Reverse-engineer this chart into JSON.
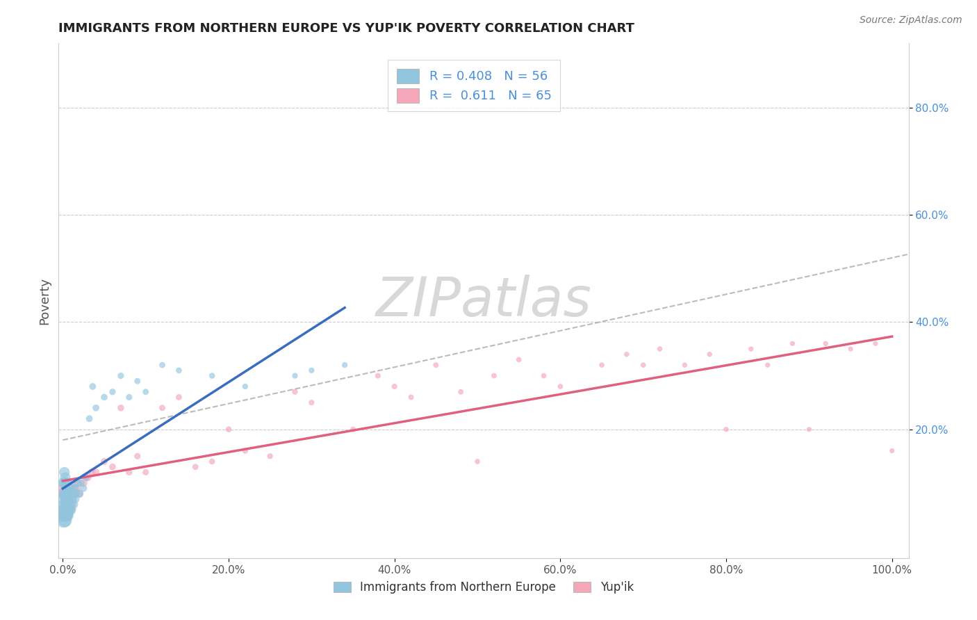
{
  "title": "IMMIGRANTS FROM NORTHERN EUROPE VS YUP'IK POVERTY CORRELATION CHART",
  "source": "Source: ZipAtlas.com",
  "ylabel": "Poverty",
  "xlabel": "",
  "xlim": [
    -0.005,
    1.02
  ],
  "ylim": [
    -0.04,
    0.92
  ],
  "xticks": [
    0,
    0.2,
    0.4,
    0.6,
    0.8,
    1.0
  ],
  "xticklabels": [
    "0.0%",
    "20.0%",
    "40.0%",
    "60.0%",
    "80.0%",
    "100.0%"
  ],
  "yticks": [
    0.2,
    0.4,
    0.6,
    0.8
  ],
  "yticklabels": [
    "20.0%",
    "40.0%",
    "60.0%",
    "80.0%"
  ],
  "blue_color": "#92c5de",
  "pink_color": "#f4a7b9",
  "blue_line_color": "#3a6dbf",
  "pink_line_color": "#e06080",
  "dashed_line_color": "#aaaaaa",
  "watermark_color": "#d8d8d8",
  "legend_r_blue": "R = 0.408",
  "legend_n_blue": "N = 56",
  "legend_r_pink": "R =  0.611",
  "legend_n_pink": "N = 65",
  "blue_series_x": [
    0.001,
    0.001,
    0.001,
    0.001,
    0.002,
    0.002,
    0.002,
    0.002,
    0.002,
    0.003,
    0.003,
    0.003,
    0.003,
    0.004,
    0.004,
    0.004,
    0.005,
    0.005,
    0.005,
    0.006,
    0.006,
    0.006,
    0.007,
    0.007,
    0.008,
    0.008,
    0.009,
    0.01,
    0.01,
    0.011,
    0.012,
    0.013,
    0.014,
    0.015,
    0.016,
    0.018,
    0.02,
    0.022,
    0.025,
    0.028,
    0.032,
    0.036,
    0.04,
    0.05,
    0.06,
    0.07,
    0.08,
    0.09,
    0.1,
    0.12,
    0.14,
    0.18,
    0.22,
    0.28,
    0.3,
    0.34
  ],
  "blue_series_y": [
    0.03,
    0.05,
    0.07,
    0.1,
    0.04,
    0.06,
    0.08,
    0.1,
    0.12,
    0.03,
    0.05,
    0.08,
    0.11,
    0.04,
    0.07,
    0.1,
    0.04,
    0.06,
    0.09,
    0.04,
    0.07,
    0.1,
    0.05,
    0.08,
    0.05,
    0.09,
    0.06,
    0.05,
    0.09,
    0.07,
    0.08,
    0.06,
    0.09,
    0.07,
    0.08,
    0.1,
    0.08,
    0.1,
    0.09,
    0.11,
    0.22,
    0.28,
    0.24,
    0.26,
    0.27,
    0.3,
    0.26,
    0.29,
    0.27,
    0.32,
    0.31,
    0.3,
    0.28,
    0.3,
    0.31,
    0.32
  ],
  "blue_sizes": [
    220,
    180,
    160,
    140,
    200,
    170,
    150,
    130,
    120,
    190,
    160,
    140,
    120,
    170,
    150,
    130,
    160,
    140,
    120,
    150,
    130,
    110,
    140,
    120,
    130,
    110,
    120,
    110,
    95,
    100,
    95,
    90,
    85,
    80,
    75,
    70,
    65,
    60,
    55,
    50,
    50,
    50,
    50,
    48,
    45,
    44,
    43,
    42,
    41,
    40,
    39,
    38,
    37,
    36,
    36,
    35
  ],
  "pink_series_x": [
    0.001,
    0.001,
    0.002,
    0.002,
    0.003,
    0.003,
    0.004,
    0.005,
    0.005,
    0.006,
    0.007,
    0.008,
    0.009,
    0.01,
    0.011,
    0.012,
    0.014,
    0.016,
    0.018,
    0.02,
    0.025,
    0.03,
    0.035,
    0.04,
    0.05,
    0.06,
    0.07,
    0.08,
    0.09,
    0.1,
    0.12,
    0.14,
    0.16,
    0.18,
    0.2,
    0.22,
    0.25,
    0.28,
    0.3,
    0.35,
    0.38,
    0.4,
    0.42,
    0.45,
    0.48,
    0.5,
    0.52,
    0.55,
    0.58,
    0.6,
    0.65,
    0.68,
    0.7,
    0.72,
    0.75,
    0.78,
    0.8,
    0.83,
    0.85,
    0.88,
    0.9,
    0.92,
    0.95,
    0.98,
    1.0
  ],
  "pink_series_y": [
    0.04,
    0.08,
    0.05,
    0.09,
    0.04,
    0.08,
    0.06,
    0.05,
    0.09,
    0.06,
    0.07,
    0.05,
    0.08,
    0.06,
    0.07,
    0.09,
    0.08,
    0.09,
    0.1,
    0.08,
    0.1,
    0.11,
    0.12,
    0.12,
    0.14,
    0.13,
    0.24,
    0.12,
    0.15,
    0.12,
    0.24,
    0.26,
    0.13,
    0.14,
    0.2,
    0.16,
    0.15,
    0.27,
    0.25,
    0.2,
    0.3,
    0.28,
    0.26,
    0.32,
    0.27,
    0.14,
    0.3,
    0.33,
    0.3,
    0.28,
    0.32,
    0.34,
    0.32,
    0.35,
    0.32,
    0.34,
    0.2,
    0.35,
    0.32,
    0.36,
    0.2,
    0.36,
    0.35,
    0.36,
    0.16
  ],
  "pink_sizes": [
    200,
    170,
    180,
    155,
    165,
    140,
    150,
    145,
    125,
    135,
    120,
    125,
    115,
    110,
    105,
    100,
    90,
    85,
    80,
    75,
    65,
    60,
    58,
    55,
    52,
    50,
    48,
    46,
    44,
    43,
    42,
    41,
    40,
    39,
    38,
    37,
    36,
    36,
    35,
    35,
    34,
    34,
    33,
    33,
    32,
    32,
    32,
    31,
    31,
    31,
    30,
    30,
    30,
    30,
    29,
    29,
    29,
    29,
    28,
    28,
    28,
    28,
    27,
    27,
    27
  ]
}
